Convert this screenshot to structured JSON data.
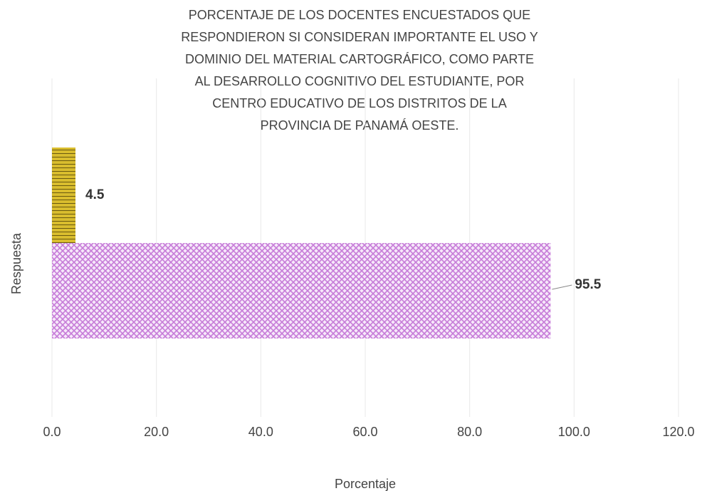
{
  "chart_data": {
    "type": "hbar",
    "title": [
      "PORCENTAJE DE LOS DOCENTES ENCUESTADOS QUE",
      "RESPONDIERON SI CONSIDERAN IMPORTANTE EL USO Y",
      "DOMINIO DEL MATERIAL CARTOGRÁFICO, COMO PARTE",
      "AL DESARROLLO COGNITIVO DEL ESTUDIANTE, POR",
      "CENTRO EDUCATIVO DE LOS DISTRITOS DE LA",
      "PROVINCIA DE PANAMÁ OESTE."
    ],
    "xlabel": "Porcentaje",
    "ylabel": "Respuesta",
    "categories": [
      null,
      null
    ],
    "values": [
      4.5,
      95.5
    ],
    "colors": [
      "#d9bd2e",
      "#c67bd8"
    ],
    "xlim": [
      0,
      120
    ],
    "xticks": [
      {
        "value": 0,
        "label": "0.0"
      },
      {
        "value": 20,
        "label": "20.0"
      },
      {
        "value": 40,
        "label": "40.0"
      },
      {
        "value": 60,
        "label": "60.0"
      },
      {
        "value": 80,
        "label": "80.0"
      },
      {
        "value": 100,
        "label": "100.0"
      },
      {
        "value": 120,
        "label": "120.0"
      }
    ],
    "grid": true
  }
}
